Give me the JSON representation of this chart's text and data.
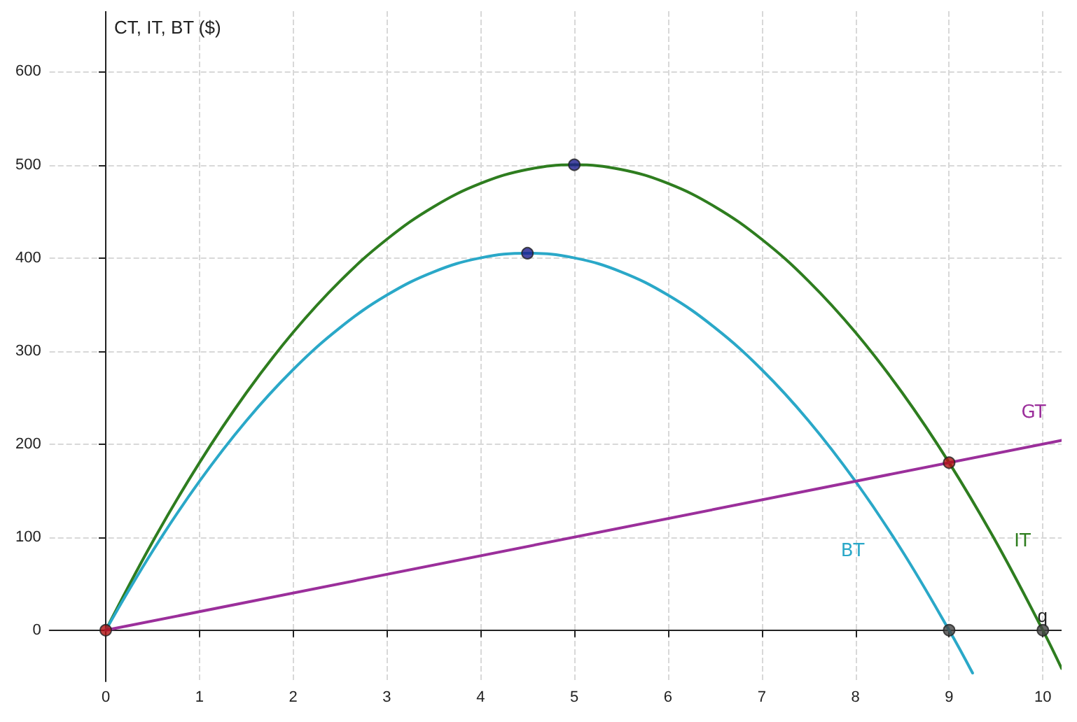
{
  "chart_data": {
    "type": "line",
    "xlabel": "q",
    "ylabel": "CT, IT, BT ($)",
    "xlim": [
      -0.6,
      10.2
    ],
    "ylim": [
      -55,
      665
    ],
    "xticks": [
      0,
      1,
      2,
      3,
      4,
      5,
      6,
      7,
      8,
      9,
      10
    ],
    "yticks": [
      0,
      100,
      200,
      300,
      400,
      500,
      600
    ],
    "grid": true,
    "legend": false,
    "line_style": "solid",
    "marker": "none",
    "series": [
      {
        "name": "IT",
        "color": "#2e7d1f",
        "x": [
          0,
          0.5,
          1,
          1.5,
          2,
          2.5,
          3,
          3.5,
          4,
          4.5,
          5,
          5.5,
          6,
          6.5,
          7,
          7.5,
          8,
          8.5,
          9,
          9.5,
          10,
          10.2
        ],
        "values": [
          0,
          95,
          180,
          255,
          320,
          375,
          420,
          455,
          480,
          495,
          500,
          495,
          480,
          455,
          420,
          375,
          320,
          255,
          180,
          95,
          0,
          -41
        ]
      },
      {
        "name": "BT",
        "color": "#2aa8c8",
        "x": [
          0,
          0.5,
          1,
          1.5,
          2,
          2.5,
          3,
          3.5,
          4,
          4.5,
          5,
          5.5,
          6,
          6.5,
          7,
          7.5,
          8,
          8.5,
          9,
          9.25
        ],
        "values": [
          0,
          85,
          160,
          225,
          280,
          325,
          360,
          385,
          400,
          405,
          400,
          385,
          360,
          325,
          280,
          225,
          160,
          85,
          0,
          -46
        ]
      },
      {
        "name": "GT",
        "color": "#9b2f9b",
        "x": [
          0,
          10.2
        ],
        "values": [
          0,
          204
        ]
      },
      {
        "type": "scatter",
        "marker": "circle",
        "x": [
          5,
          4.5,
          0,
          9,
          9,
          10
        ],
        "values": [
          500,
          405,
          0,
          180,
          0,
          0
        ],
        "colors": [
          "#1a1a8c",
          "#1a1a8c",
          "#b01010",
          "#b01010",
          "#444444",
          "#444444"
        ]
      }
    ]
  }
}
